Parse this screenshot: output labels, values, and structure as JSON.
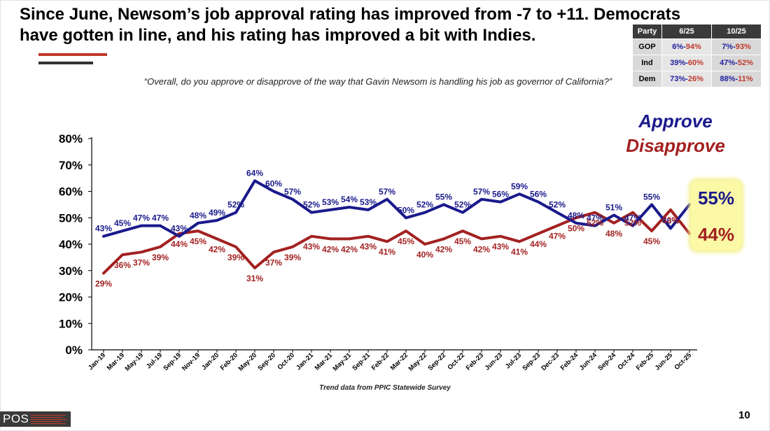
{
  "headline": {
    "line1": "Since June, Newsom’s job approval rating has improved from -7 to +11. Democrats",
    "line2": "have gotten in line, and his rating has improved a bit with Indies."
  },
  "question": "“Overall, do you approve or disapprove of the way that Gavin Newsom is handling his job as governor of California?”",
  "party_table": {
    "headers": [
      "Party",
      "6/25",
      "10/25"
    ],
    "rows": [
      {
        "party": "GOP",
        "jun_approve": "6%",
        "jun_disapprove": "94%",
        "oct_approve": "7%",
        "oct_disapprove": "93%"
      },
      {
        "party": "Ind",
        "jun_approve": "39%",
        "jun_disapprove": "60%",
        "oct_approve": "47%",
        "oct_disapprove": "52%"
      },
      {
        "party": "Dem",
        "jun_approve": "73%",
        "jun_disapprove": "26%",
        "oct_approve": "88%",
        "oct_disapprove": "11%"
      }
    ]
  },
  "legend": {
    "approve": "Approve",
    "disapprove": "Disapprove"
  },
  "callout": {
    "approve": "55%",
    "disapprove": "44%"
  },
  "source_note": "Trend data from PPIC Statewide Survey",
  "page_number": "10",
  "logo": "POS",
  "colors": {
    "approve": "#1a1a8c",
    "disapprove": "#a32121",
    "callout_fill": "#fbf8a6",
    "rule_red": "#c0392b",
    "rule_dark": "#333333"
  },
  "chart_data": {
    "type": "line",
    "ylim": [
      0,
      80
    ],
    "yticks": [
      "0%",
      "10%",
      "20%",
      "30%",
      "40%",
      "50%",
      "60%",
      "70%",
      "80%"
    ],
    "ytick_values": [
      0,
      10,
      20,
      30,
      40,
      50,
      60,
      70,
      80
    ],
    "x_tick_labels": [
      "Jan-19",
      "Mar-19",
      "May-19",
      "Jul-19",
      "Sep-19",
      "Nov-19",
      "Jan-20",
      "Feb-20",
      "May-20",
      "Sep-20",
      "Oct-20",
      "Jan-21",
      "Mar-21",
      "May-21",
      "Sep-21",
      "Feb-22",
      "Mar-22",
      "May-22",
      "Sep-22",
      "Oct-22",
      "Feb-23",
      "Jun-23",
      "Jul-23",
      "Sep-23",
      "Dec-23",
      "Feb-24",
      "Jun-24",
      "Sep-24",
      "Oct-24",
      "Feb-25",
      "Jun-25",
      "Oct-25"
    ],
    "series": [
      {
        "name": "Approve",
        "color": "#1a1a8c",
        "points": [
          {
            "i": 0,
            "v": 43,
            "label": "43%"
          },
          {
            "i": 1,
            "v": 45,
            "label": "45%"
          },
          {
            "i": 2,
            "v": 47,
            "label": "47%"
          },
          {
            "i": 3,
            "v": 47,
            "label": "47%"
          },
          {
            "i": 4,
            "v": 43,
            "label": "43%"
          },
          {
            "i": 5,
            "v": 48,
            "label": "48%"
          },
          {
            "i": 6,
            "v": 49,
            "label": "49%"
          },
          {
            "i": 7,
            "v": 52,
            "label": "52%"
          },
          {
            "i": 8,
            "v": 64,
            "label": "64%"
          },
          {
            "i": 9,
            "v": 60,
            "label": "60%"
          },
          {
            "i": 10,
            "v": 57,
            "label": "57%"
          },
          {
            "i": 11,
            "v": 52,
            "label": "52%"
          },
          {
            "i": 12,
            "v": 53,
            "label": "53%"
          },
          {
            "i": 13,
            "v": 54,
            "label": "54%"
          },
          {
            "i": 14,
            "v": 53,
            "label": "53%"
          },
          {
            "i": 15,
            "v": 57,
            "label": "57%"
          },
          {
            "i": 16,
            "v": 50,
            "label": "50%"
          },
          {
            "i": 17,
            "v": 52,
            "label": "52%"
          },
          {
            "i": 18,
            "v": 55,
            "label": "55%"
          },
          {
            "i": 19,
            "v": 52,
            "label": "52%"
          },
          {
            "i": 20,
            "v": 57,
            "label": "57%"
          },
          {
            "i": 21,
            "v": 56,
            "label": "56%"
          },
          {
            "i": 22,
            "v": 59,
            "label": "59%"
          },
          {
            "i": 23,
            "v": 56,
            "label": "56%"
          },
          {
            "i": 24,
            "v": 52,
            "label": "52%"
          },
          {
            "i": 25,
            "v": 48,
            "label": "48%"
          },
          {
            "i": 26,
            "v": 47,
            "label": "47%"
          },
          {
            "i": 27,
            "v": 51,
            "label": "51%"
          },
          {
            "i": 28,
            "v": 47,
            "label": "47%"
          },
          {
            "i": 29,
            "v": 55,
            "label": "55%"
          },
          {
            "i": 30,
            "v": 46,
            "label": "46%"
          },
          {
            "i": 31,
            "v": 55,
            "label": ""
          }
        ]
      },
      {
        "name": "Disapprove",
        "color": "#a32121",
        "points": [
          {
            "i": 0,
            "v": 29,
            "label": "29%"
          },
          {
            "i": 1,
            "v": 36,
            "label": "36%"
          },
          {
            "i": 2,
            "v": 37,
            "label": "37%"
          },
          {
            "i": 3,
            "v": 39,
            "label": "39%"
          },
          {
            "i": 4,
            "v": 44,
            "label": "44%"
          },
          {
            "i": 5,
            "v": 45,
            "label": "45%"
          },
          {
            "i": 6,
            "v": 42,
            "label": "42%"
          },
          {
            "i": 7,
            "v": 39,
            "label": "39%"
          },
          {
            "i": 8,
            "v": 31,
            "label": "31%"
          },
          {
            "i": 9,
            "v": 37,
            "label": "37%"
          },
          {
            "i": 10,
            "v": 39,
            "label": "39%"
          },
          {
            "i": 11,
            "v": 43,
            "label": "43%"
          },
          {
            "i": 12,
            "v": 42,
            "label": "42%"
          },
          {
            "i": 13,
            "v": 42,
            "label": "42%"
          },
          {
            "i": 14,
            "v": 43,
            "label": "43%"
          },
          {
            "i": 15,
            "v": 41,
            "label": "41%"
          },
          {
            "i": 16,
            "v": 45,
            "label": "45%"
          },
          {
            "i": 17,
            "v": 40,
            "label": "40%"
          },
          {
            "i": 18,
            "v": 42,
            "label": "42%"
          },
          {
            "i": 19,
            "v": 45,
            "label": "45%"
          },
          {
            "i": 20,
            "v": 42,
            "label": "42%"
          },
          {
            "i": 21,
            "v": 43,
            "label": "43%"
          },
          {
            "i": 22,
            "v": 41,
            "label": "41%"
          },
          {
            "i": 23,
            "v": 44,
            "label": "44%"
          },
          {
            "i": 24,
            "v": 47,
            "label": "47%"
          },
          {
            "i": 25,
            "v": 50,
            "label": "50%"
          },
          {
            "i": 26,
            "v": 52,
            "label": "52%"
          },
          {
            "i": 27,
            "v": 48,
            "label": "48%"
          },
          {
            "i": 28,
            "v": 52,
            "label": "52%"
          },
          {
            "i": 29,
            "v": 45,
            "label": "45%"
          },
          {
            "i": 30,
            "v": 53,
            "label": "53%"
          },
          {
            "i": 31,
            "v": 44,
            "label": ""
          }
        ]
      }
    ]
  }
}
